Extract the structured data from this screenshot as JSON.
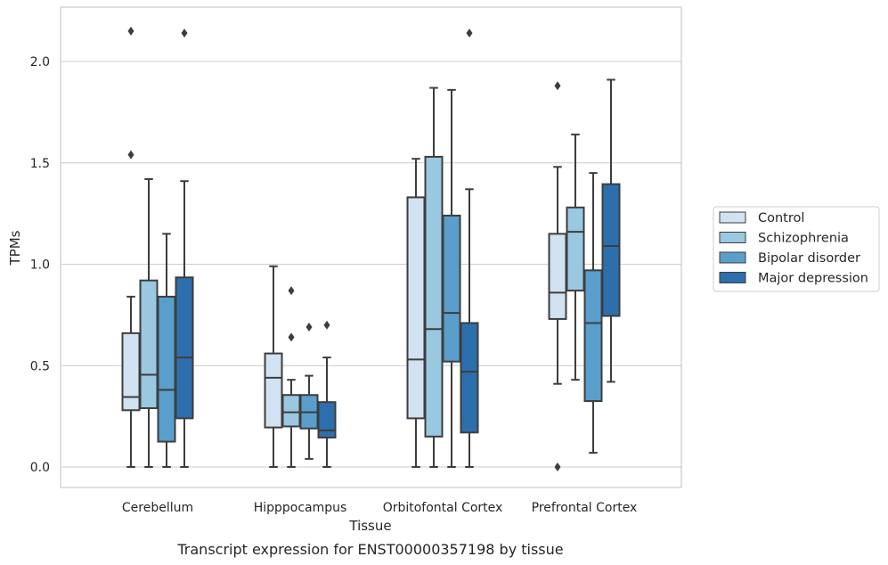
{
  "chart_data": {
    "type": "box",
    "caption": "Transcript expression for ENST00000357198 by tissue",
    "xlabel": "Tissue",
    "ylabel": "TPMs",
    "ylim": [
      -0.1,
      2.27
    ],
    "yticks": [
      0.0,
      0.5,
      1.0,
      1.5,
      2.0
    ],
    "ytick_labels": [
      "0.0",
      "0.5",
      "1.0",
      "1.5",
      "2.0"
    ],
    "grid": "horizontal",
    "legend_position": "right",
    "categories": [
      "Cerebellum",
      "Hipppocampus",
      "Orbitofontal Cortex",
      "Prefrontal Cortex"
    ],
    "series": [
      {
        "name": "Control",
        "color": "#d1e2f2",
        "boxes": [
          {
            "whislo": 0.0,
            "q1": 0.28,
            "med": 0.345,
            "q3": 0.66,
            "whishi": 0.84,
            "fliers": [
              1.54,
              2.15
            ]
          },
          {
            "whislo": 0.0,
            "q1": 0.195,
            "med": 0.44,
            "q3": 0.56,
            "whishi": 0.99,
            "fliers": []
          },
          {
            "whislo": 0.0,
            "q1": 0.24,
            "med": 0.53,
            "q3": 1.33,
            "whishi": 1.52,
            "fliers": []
          },
          {
            "whislo": 0.41,
            "q1": 0.73,
            "med": 0.86,
            "q3": 1.15,
            "whishi": 1.48,
            "fliers": [
              0.0,
              1.88
            ]
          }
        ]
      },
      {
        "name": "Schizophrenia",
        "color": "#9ac8e0",
        "boxes": [
          {
            "whislo": 0.0,
            "q1": 0.29,
            "med": 0.455,
            "q3": 0.92,
            "whishi": 1.42,
            "fliers": []
          },
          {
            "whislo": 0.0,
            "q1": 0.2,
            "med": 0.27,
            "q3": 0.355,
            "whishi": 0.43,
            "fliers": [
              0.64,
              0.87
            ]
          },
          {
            "whislo": 0.0,
            "q1": 0.15,
            "med": 0.68,
            "q3": 1.53,
            "whishi": 1.87,
            "fliers": []
          },
          {
            "whislo": 0.43,
            "q1": 0.87,
            "med": 1.16,
            "q3": 1.28,
            "whishi": 1.64,
            "fliers": []
          }
        ]
      },
      {
        "name": "Bipolar disorder",
        "color": "#5a9fcb",
        "boxes": [
          {
            "whislo": 0.0,
            "q1": 0.125,
            "med": 0.38,
            "q3": 0.84,
            "whishi": 1.15,
            "fliers": []
          },
          {
            "whislo": 0.04,
            "q1": 0.19,
            "med": 0.27,
            "q3": 0.355,
            "whishi": 0.45,
            "fliers": [
              0.69
            ]
          },
          {
            "whislo": 0.0,
            "q1": 0.52,
            "med": 0.76,
            "q3": 1.24,
            "whishi": 1.86,
            "fliers": []
          },
          {
            "whislo": 0.07,
            "q1": 0.325,
            "med": 0.71,
            "q3": 0.97,
            "whishi": 1.45,
            "fliers": []
          }
        ]
      },
      {
        "name": "Major depression",
        "color": "#2d6fac",
        "boxes": [
          {
            "whislo": 0.0,
            "q1": 0.24,
            "med": 0.54,
            "q3": 0.935,
            "whishi": 1.41,
            "fliers": [
              2.14
            ]
          },
          {
            "whislo": 0.0,
            "q1": 0.145,
            "med": 0.18,
            "q3": 0.32,
            "whishi": 0.54,
            "fliers": [
              0.7
            ]
          },
          {
            "whislo": 0.0,
            "q1": 0.17,
            "med": 0.47,
            "q3": 0.71,
            "whishi": 1.37,
            "fliers": [
              2.14
            ]
          },
          {
            "whislo": 0.42,
            "q1": 0.745,
            "med": 1.09,
            "q3": 1.395,
            "whishi": 1.91,
            "fliers": []
          }
        ]
      }
    ]
  }
}
